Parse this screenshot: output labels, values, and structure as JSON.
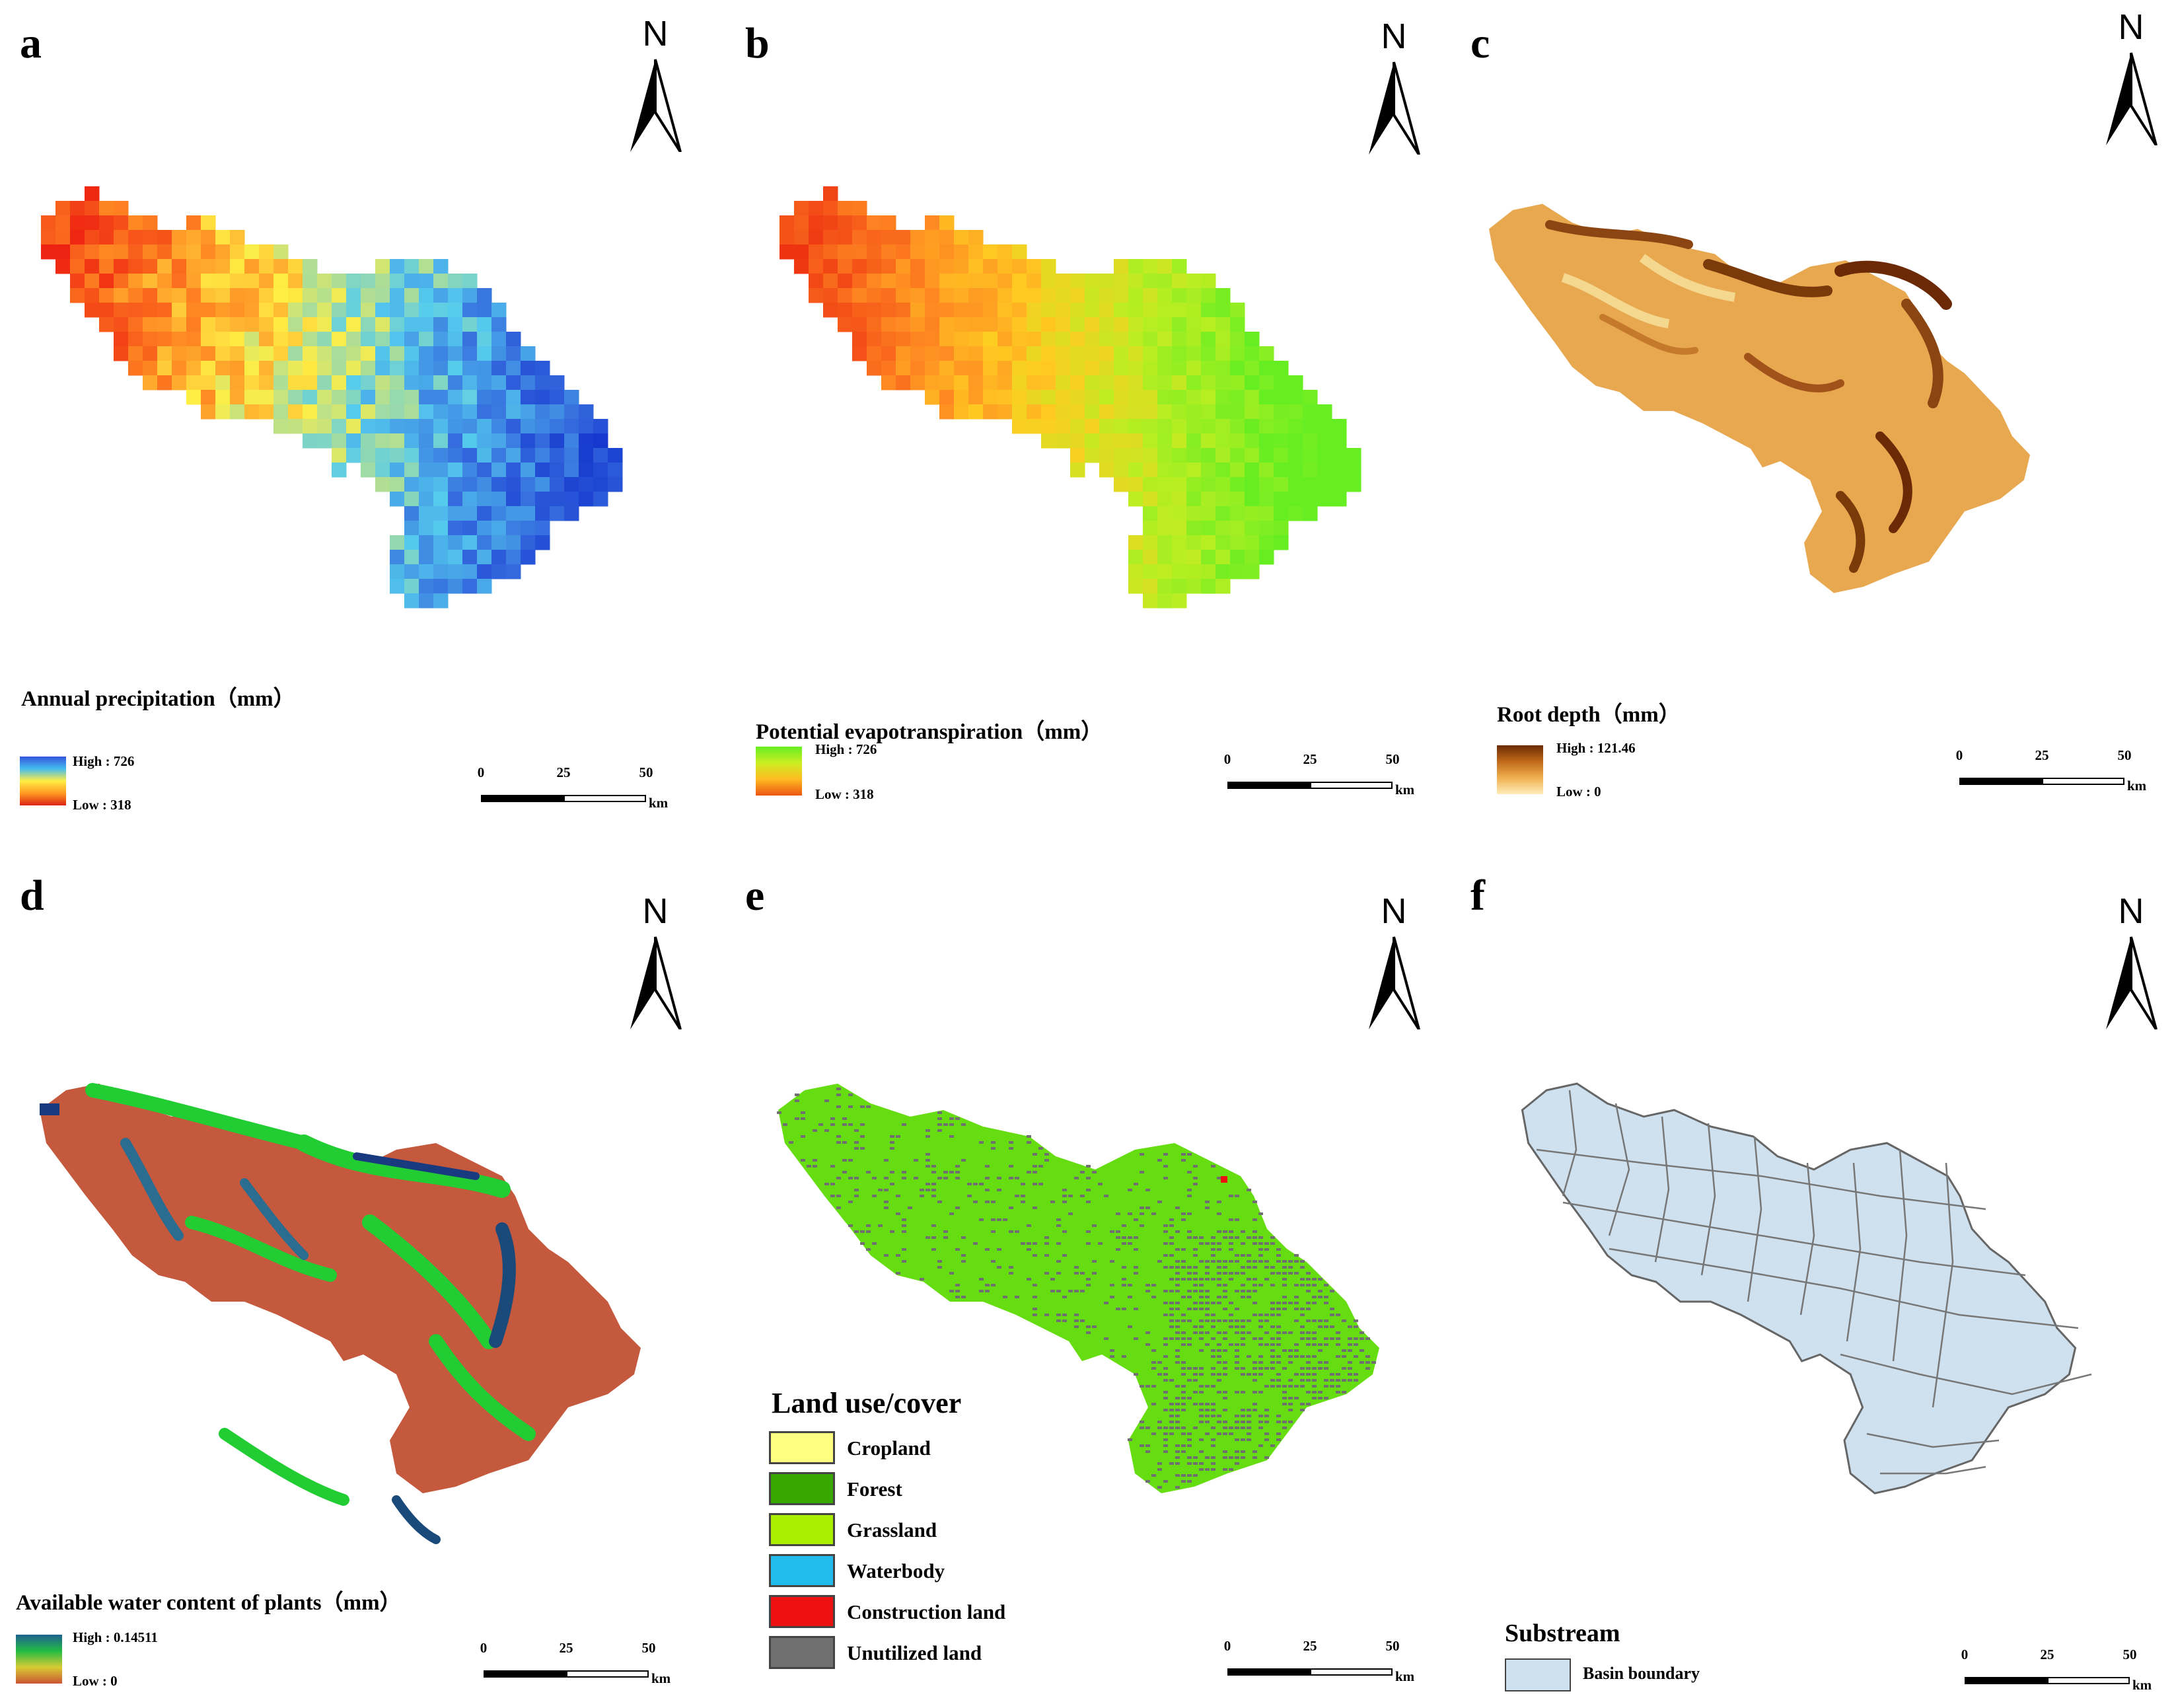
{
  "panels": [
    {
      "id": "a",
      "label": "a",
      "north": "N",
      "legend_title": "Annual precipitation（mm）",
      "high": "High : 726",
      "low": "Low : 318",
      "gradient_colors": [
        "#3355dd",
        "#44bbee",
        "#ffee44",
        "#ff9922",
        "#dd2211"
      ],
      "scale_ticks": [
        "0",
        "25",
        "50"
      ],
      "scale_unit": "km",
      "map_style": "precip"
    },
    {
      "id": "b",
      "label": "b",
      "north": "N",
      "legend_title": "Potential evapotranspiration（mm）",
      "high": "High : 726",
      "low": "Low : 318",
      "gradient_colors": [
        "#66ee22",
        "#ccee22",
        "#ffbb22",
        "#ee5511"
      ],
      "scale_ticks": [
        "0",
        "25",
        "50"
      ],
      "scale_unit": "km",
      "map_style": "pet"
    },
    {
      "id": "c",
      "label": "c",
      "north": "N",
      "legend_title": "Root depth（mm）",
      "high": "High : 121.46",
      "low": "Low : 0",
      "gradient_colors": [
        "#6b2a05",
        "#c06a1a",
        "#f0b050",
        "#ffeebb"
      ],
      "scale_ticks": [
        "0",
        "25",
        "50"
      ],
      "scale_unit": "km",
      "map_style": "root"
    },
    {
      "id": "d",
      "label": "d",
      "north": "N",
      "legend_title": "Available water content of plants（mm）",
      "high": "High : 0.14511",
      "low": "Low : 0",
      "gradient_colors": [
        "#1e6090",
        "#22bb44",
        "#d8cc33",
        "#cc5533"
      ],
      "scale_ticks": [
        "0",
        "25",
        "50"
      ],
      "scale_unit": "km",
      "map_style": "awc"
    },
    {
      "id": "e",
      "label": "e",
      "north": "N",
      "legend_title": "Land use/cover",
      "classes": [
        {
          "name": "Cropland",
          "color": "#ffff80"
        },
        {
          "name": "Forest",
          "color": "#38a800"
        },
        {
          "name": "Grassland",
          "color": "#aaee00"
        },
        {
          "name": "Waterbody",
          "color": "#22bbee"
        },
        {
          "name": "Construction land",
          "color": "#ee1111"
        },
        {
          "name": "Unutilized land",
          "color": "#707070"
        }
      ],
      "scale_ticks": [
        "0",
        "25",
        "50"
      ],
      "scale_unit": "km",
      "map_style": "landuse"
    },
    {
      "id": "f",
      "label": "f",
      "north": "N",
      "legend_title": "Substream",
      "classes": [
        {
          "name": "Basin boundary",
          "color": "#cfe0ee"
        }
      ],
      "scale_ticks": [
        "0",
        "25",
        "50"
      ],
      "scale_unit": "km",
      "map_style": "basin"
    }
  ]
}
